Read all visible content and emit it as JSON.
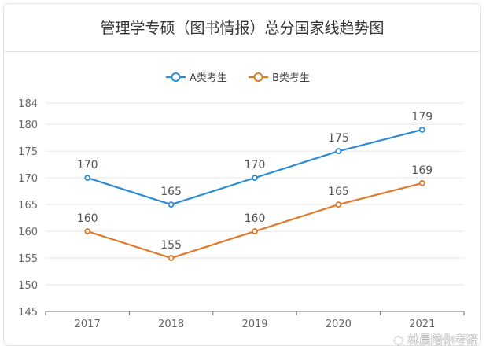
{
  "chart_data": {
    "type": "line",
    "title": "管理学专硕（图书情报）总分国家线趋势图",
    "categories": [
      "2017",
      "2018",
      "2019",
      "2020",
      "2021"
    ],
    "series": [
      {
        "name": "A类考生",
        "values": [
          170,
          165,
          170,
          175,
          179
        ],
        "color": "#2b8bd4"
      },
      {
        "name": "B类考生",
        "values": [
          160,
          155,
          160,
          165,
          169
        ],
        "color": "#e07a2b"
      }
    ],
    "ylim": [
      145,
      184
    ],
    "yticks": [
      145,
      150,
      155,
      160,
      165,
      170,
      175,
      180,
      184
    ],
    "grid": true,
    "legend": "top-center",
    "data_labels": true
  },
  "watermark": "林晨陪你考研"
}
